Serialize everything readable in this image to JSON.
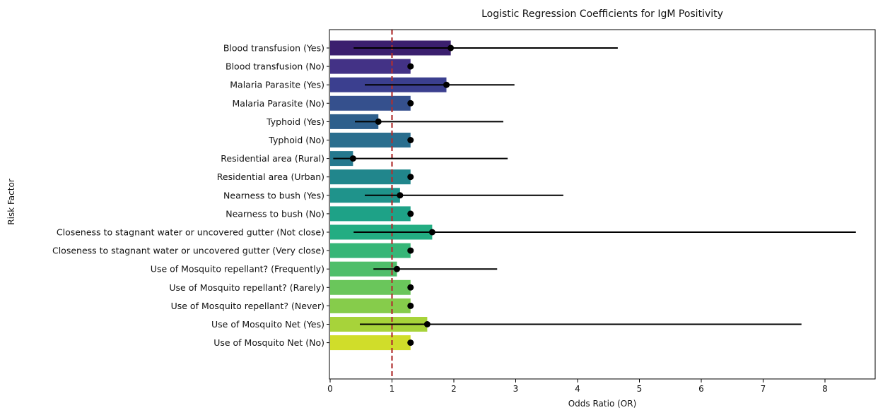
{
  "chart_data": {
    "type": "bar",
    "orientation": "horizontal",
    "title": "Logistic Regression Coefficients for IgM Positivity",
    "xlabel": "Odds Ratio (OR)",
    "ylabel": "Risk Factor",
    "xlim": [
      0,
      8.6
    ],
    "xticks": [
      "0",
      "1",
      "2",
      "3",
      "4",
      "5",
      "6",
      "7",
      "8"
    ],
    "reference_line": {
      "x": 1,
      "style": "dashed",
      "color": "#b03030"
    },
    "colormap": "viridis",
    "categories": [
      "Blood transfusion (Yes)",
      "Blood transfusion (No)",
      "Malaria Parasite (Yes)",
      "Malaria Parasite (No)",
      "Typhoid (Yes)",
      "Typhoid (No)",
      "Residential area (Rural)",
      "Residential area (Urban)",
      "Nearness to bush (Yes)",
      "Nearness to bush (No)",
      "Closeness to stagnant water or uncovered gutter (Not close)",
      "Closeness to stagnant water or uncovered gutter (Very close)",
      "Use of Mosquito repellant? (Frequently)",
      "Use of Mosquito repellant? (Rarely)",
      "Use of Mosquito repellant? (Never)",
      "Use of Mosquito Net (Yes)",
      "Use of Mosquito Net (No)"
    ],
    "odds_ratio": [
      1.95,
      1.3,
      1.88,
      1.3,
      0.78,
      1.3,
      0.37,
      1.3,
      1.13,
      1.3,
      1.65,
      1.3,
      1.08,
      1.3,
      1.3,
      1.57,
      1.3
    ],
    "ci_lower": [
      0.38,
      1.3,
      0.56,
      1.3,
      0.4,
      1.3,
      0.05,
      1.3,
      0.56,
      1.3,
      0.38,
      1.3,
      0.7,
      1.3,
      1.3,
      0.48,
      1.3
    ],
    "ci_upper": [
      4.65,
      1.3,
      2.98,
      1.3,
      2.8,
      1.3,
      2.87,
      1.3,
      3.77,
      1.3,
      8.5,
      1.3,
      2.7,
      1.3,
      1.3,
      7.62,
      1.3
    ],
    "colors": [
      "#3b1f6e",
      "#433286",
      "#3b3f8f",
      "#35508d",
      "#2e5f8c",
      "#2a6e8e",
      "#25788e",
      "#21868c",
      "#1f938b",
      "#1ea287",
      "#23ad82",
      "#36b677",
      "#4fbe6a",
      "#6ac65b",
      "#86cc4b",
      "#a7d33a",
      "#d0dd2a"
    ]
  }
}
